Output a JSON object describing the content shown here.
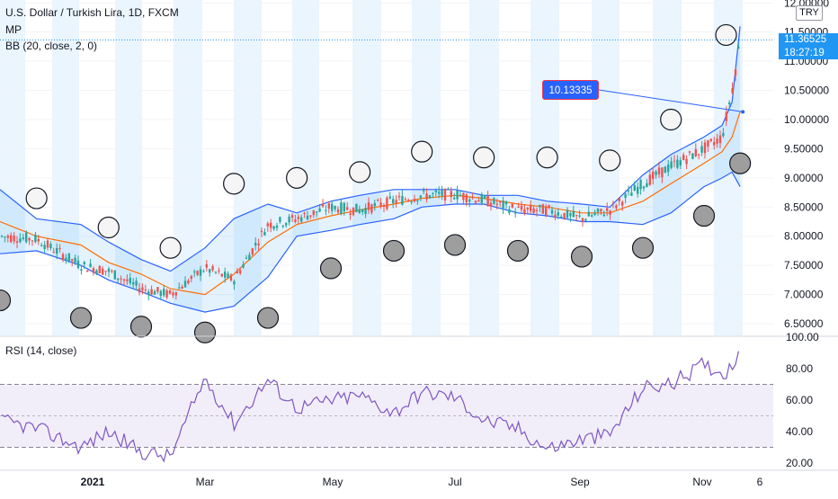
{
  "legend": {
    "title": "U.S. Dollar / Turkish Lira, 1D, FXCM",
    "mp": "MP",
    "bb": "BB (20, close, 2, 0)",
    "rsi": "RSI (14, close)"
  },
  "price_axis": {
    "currency": "TRY",
    "last_price": "11.36525",
    "countdown": "18:27:19",
    "top_label": "12.00000"
  },
  "annotation": {
    "label": "10.13335",
    "price": 10.13335
  },
  "colors": {
    "background": "#ffffff",
    "band_blue": "#e3f2fd",
    "candle_up": "#26a69a",
    "candle_down": "#ef5350",
    "bb_line": "#2962ff",
    "bb_basis": "#ff6d00",
    "bb_fill": "#2196f3",
    "rsi_line": "#7e57c2",
    "rsi_band": "#ede7f6",
    "circle_light": "#f5f5f5",
    "circle_dark": "#9e9e9e",
    "axis_text": "#131722",
    "callout": "#2962ff",
    "callout_border": "#f23645"
  },
  "chart_data": [
    {
      "type": "candlestick",
      "title": "U.S. Dollar / Turkish Lira, 1D, FXCM",
      "ylim": [
        6.3,
        12.05
      ],
      "y_ticks": [
        "6.50000",
        "7.00000",
        "7.50000",
        "8.00000",
        "8.50000",
        "9.00000",
        "9.50000",
        "10.00000",
        "10.50000",
        "11.00000",
        "11.50000",
        "12.00000"
      ],
      "x_ticks": [
        "2021",
        "Mar",
        "May",
        "Jul",
        "Sep",
        "Nov",
        "6"
      ],
      "close_series_approx": {
        "dates": [
          "Dec 1",
          "Dec 15",
          "Jan 1",
          "Jan 15",
          "Feb 1",
          "Feb 15",
          "Mar 1",
          "Mar 15",
          "Apr 1",
          "Apr 15",
          "May 1",
          "May 15",
          "Jun 1",
          "Jun 15",
          "Jul 1",
          "Jul 15",
          "Aug 1",
          "Aug 15",
          "Sep 1",
          "Sep 15",
          "Oct 1",
          "Oct 15",
          "Nov 1",
          "Nov 10",
          "Nov 15",
          "Nov 19"
        ],
        "values": [
          8.0,
          7.95,
          7.5,
          7.4,
          7.1,
          7.0,
          7.45,
          7.25,
          8.2,
          8.3,
          8.5,
          8.45,
          8.6,
          8.7,
          8.72,
          8.62,
          8.45,
          8.45,
          8.3,
          8.45,
          8.9,
          9.2,
          9.5,
          9.7,
          10.5,
          11.36525
        ]
      },
      "bollinger_bands": {
        "dates": [
          "Dec 1",
          "Dec 15",
          "Jan 1",
          "Jan 15",
          "Feb 1",
          "Feb 15",
          "Mar 1",
          "Mar 15",
          "Apr 1",
          "Apr 15",
          "May 1",
          "May 15",
          "Jun 1",
          "Jun 15",
          "Jul 1",
          "Jul 15",
          "Aug 1",
          "Aug 15",
          "Sep 1",
          "Sep 15",
          "Oct 1",
          "Oct 15",
          "Nov 1",
          "Nov 10",
          "Nov 15",
          "Nov 19"
        ],
        "upper": [
          8.8,
          8.3,
          8.2,
          7.9,
          7.6,
          7.4,
          7.8,
          8.3,
          8.55,
          8.4,
          8.6,
          8.7,
          8.8,
          8.8,
          8.8,
          8.7,
          8.7,
          8.6,
          8.55,
          8.5,
          9.05,
          9.4,
          9.7,
          9.9,
          10.3,
          11.6
        ],
        "basis": [
          8.25,
          8.0,
          7.85,
          7.55,
          7.35,
          7.1,
          7.0,
          7.35,
          7.9,
          8.2,
          8.35,
          8.45,
          8.55,
          8.65,
          8.7,
          8.65,
          8.55,
          8.5,
          8.4,
          8.4,
          8.6,
          8.9,
          9.25,
          9.45,
          9.7,
          10.13335
        ],
        "lower": [
          7.7,
          7.75,
          7.5,
          7.25,
          7.05,
          6.85,
          6.7,
          6.8,
          7.3,
          8.0,
          8.1,
          8.2,
          8.3,
          8.5,
          8.55,
          8.55,
          8.4,
          8.35,
          8.25,
          8.25,
          8.2,
          8.4,
          8.85,
          9.0,
          9.1,
          8.85
        ]
      },
      "markers_upper_circles": {
        "dates": [
          "Dec 15",
          "Jan 15",
          "Feb 15",
          "Mar 15",
          "Apr 15",
          "May 15",
          "Jun 15",
          "Jul 15",
          "Aug 15",
          "Sep 15",
          "Oct 15",
          "Nov 12"
        ],
        "values": [
          8.65,
          8.15,
          7.8,
          8.9,
          9.0,
          9.1,
          9.45,
          9.35,
          9.35,
          9.3,
          10.0,
          11.45
        ]
      },
      "markers_lower_circles": {
        "dates": [
          "Dec 1",
          "Jan 1",
          "Feb 1",
          "Mar 1",
          "Apr 1",
          "May 1",
          "Jun 1",
          "Jul 1",
          "Aug 1",
          "Sep 1",
          "Oct 1",
          "Nov 1",
          "Nov 19"
        ],
        "values": [
          6.9,
          6.6,
          6.45,
          6.35,
          6.6,
          7.45,
          7.75,
          7.85,
          7.75,
          7.65,
          7.8,
          8.35,
          9.25
        ]
      }
    },
    {
      "type": "line",
      "title": "RSI (14, close)",
      "ylim": [
        16,
        100
      ],
      "y_ticks": [
        "20.00",
        "40.00",
        "60.00",
        "80.00",
        "100.00"
      ],
      "overbought": 70,
      "middle": 50,
      "oversold": 30,
      "dates": [
        "Dec 1",
        "Dec 15",
        "Jan 1",
        "Jan 15",
        "Feb 1",
        "Feb 15",
        "Mar 1",
        "Mar 15",
        "Apr 1",
        "Apr 15",
        "May 1",
        "May 15",
        "Jun 1",
        "Jun 15",
        "Jul 1",
        "Jul 15",
        "Aug 1",
        "Aug 15",
        "Sep 1",
        "Sep 15",
        "Oct 1",
        "Oct 15",
        "Nov 1",
        "Nov 10",
        "Nov 15",
        "Nov 19"
      ],
      "values": [
        47,
        42,
        30,
        40,
        27,
        24,
        74,
        45,
        73,
        55,
        60,
        63,
        52,
        65,
        62,
        47,
        42,
        29,
        35,
        38,
        68,
        70,
        83,
        77,
        81,
        95
      ]
    }
  ]
}
